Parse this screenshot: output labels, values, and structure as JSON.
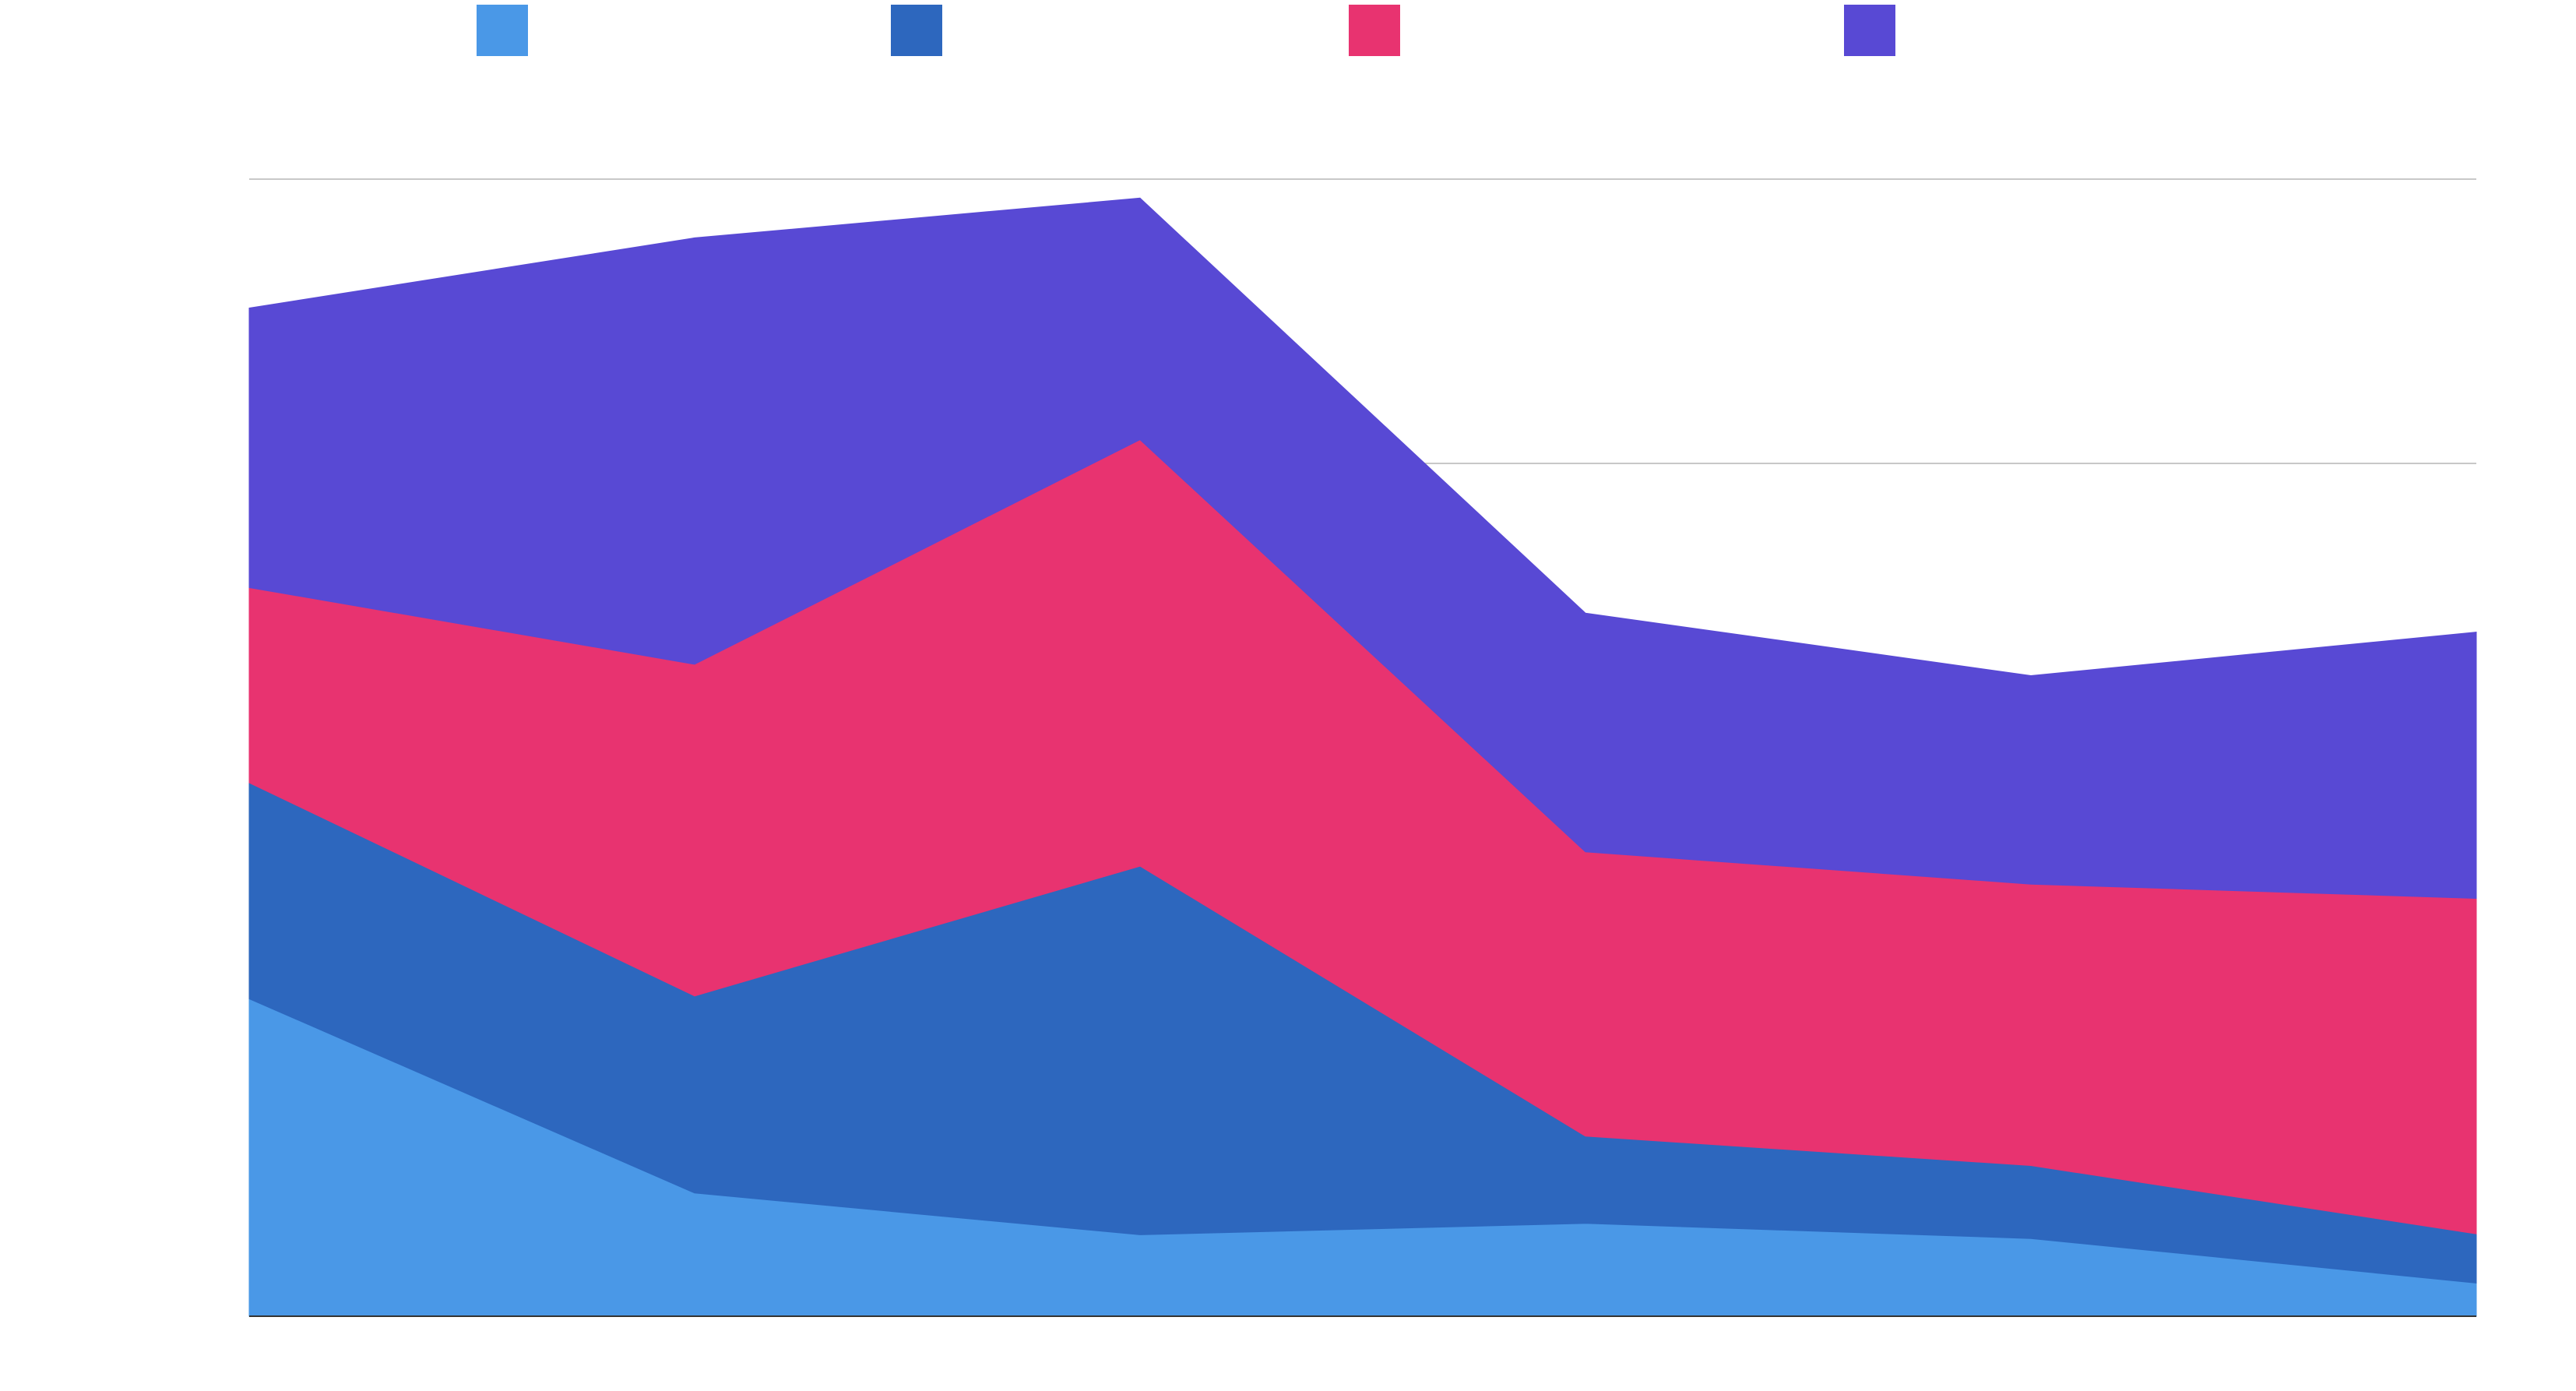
{
  "chart_data": {
    "type": "area",
    "stacked": true,
    "x": [
      0,
      1,
      2,
      3,
      4,
      5
    ],
    "x_tick_labels": [
      "",
      "",
      "",
      "",
      "",
      ""
    ],
    "series": [
      {
        "name": "",
        "color": "#4A98E7",
        "values": [
          3.35,
          1.3,
          0.86,
          0.98,
          0.82,
          0.35
        ]
      },
      {
        "name": "",
        "color": "#2D67BE",
        "values": [
          2.28,
          2.08,
          3.89,
          0.92,
          0.77,
          0.52
        ]
      },
      {
        "name": "",
        "color": "#E83370",
        "values": [
          2.06,
          3.5,
          4.5,
          3.0,
          2.97,
          3.54
        ]
      },
      {
        "name": "",
        "color": "#5849D4",
        "values": [
          2.95,
          4.5,
          2.55,
          2.52,
          2.2,
          2.81
        ]
      }
    ],
    "ylim": [
      0,
      12
    ],
    "y_gridlines": [
      9,
      12
    ],
    "y_tick_labels": [],
    "grid": true,
    "legend": "top",
    "title": "",
    "xlabel": "",
    "ylabel": ""
  }
}
